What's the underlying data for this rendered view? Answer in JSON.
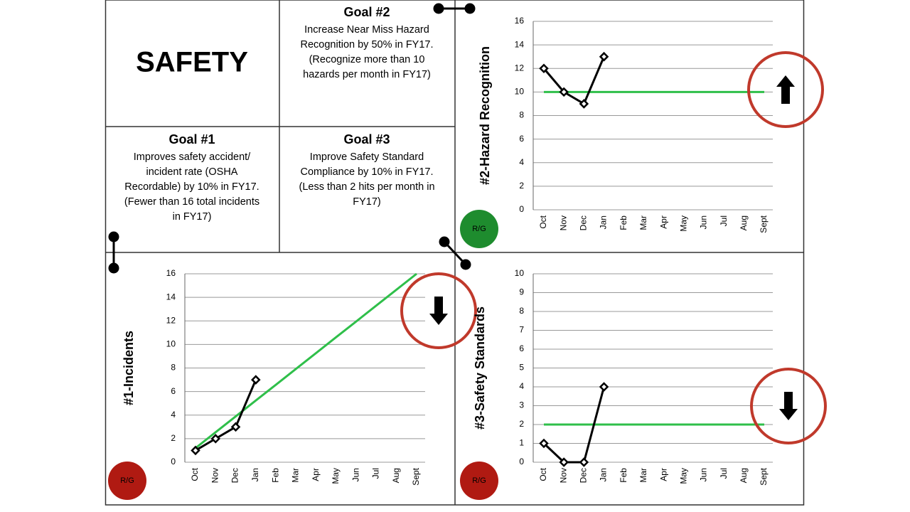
{
  "title": "SAFETY",
  "goals": [
    {
      "title": "Goal #1",
      "lines": [
        "Improves safety accident/",
        "incident rate (OSHA",
        "Recordable) by 10% in FY17.",
        "(Fewer than 16 total incidents",
        "in FY17)"
      ]
    },
    {
      "title": "Goal #2",
      "lines": [
        "Increase Near Miss Hazard",
        "Recognition by 50% in FY17.",
        "(Recognize more than 10",
        "hazards per month in FY17)"
      ]
    },
    {
      "title": "Goal #3",
      "lines": [
        "Improve Safety Standard",
        "Compliance by 10% in FY17.",
        "(Less than 2 hits per month in",
        "FY17)"
      ]
    }
  ],
  "chart_data": [
    {
      "type": "line",
      "y_label": "#2-Hazard Recognition",
      "categories": [
        "Oct",
        "Nov",
        "Dec",
        "Jan",
        "Feb",
        "Mar",
        "Apr",
        "May",
        "Jun",
        "Jul",
        "Aug",
        "Sept"
      ],
      "series": [
        {
          "color": "#000000",
          "values": [
            12,
            10,
            9,
            13,
            null,
            null,
            null,
            null,
            null,
            null,
            null,
            null
          ],
          "markers": true
        },
        {
          "color": "#2fbf4a",
          "values": [
            10,
            10,
            10,
            10,
            10,
            10,
            10,
            10,
            10,
            10,
            10,
            10
          ],
          "markers": false
        }
      ],
      "ylim": [
        0,
        16
      ],
      "yticks": [
        0,
        2,
        4,
        6,
        8,
        10,
        12,
        14,
        16
      ],
      "grid": true,
      "status": {
        "label": "R/G",
        "color": "#1e8c2e"
      },
      "trend": "up"
    },
    {
      "type": "line",
      "y_label": "#1-Incidents",
      "categories": [
        "Oct",
        "Nov",
        "Dec",
        "Jan",
        "Feb",
        "Mar",
        "Apr",
        "May",
        "Jun",
        "Jul",
        "Aug",
        "Sept"
      ],
      "series": [
        {
          "color": "#000000",
          "values": [
            1,
            2,
            3,
            7,
            null,
            null,
            null,
            null,
            null,
            null,
            null,
            null
          ],
          "markers": true
        },
        {
          "color": "#2fbf4a",
          "values": [
            1.2,
            2.55,
            3.89,
            5.24,
            6.58,
            7.93,
            9.27,
            10.62,
            11.96,
            13.31,
            14.65,
            16
          ],
          "markers": false
        }
      ],
      "ylim": [
        0,
        16
      ],
      "yticks": [
        0,
        2,
        4,
        6,
        8,
        10,
        12,
        14,
        16
      ],
      "grid": true,
      "status": {
        "label": "R/G",
        "color": "#b01a12"
      },
      "trend": "down"
    },
    {
      "type": "line",
      "y_label": "#3-Safety Standards",
      "categories": [
        "Oct",
        "Nov",
        "Dec",
        "Jan",
        "Feb",
        "Mar",
        "Apr",
        "May",
        "Jun",
        "Jul",
        "Aug",
        "Sept"
      ],
      "series": [
        {
          "color": "#000000",
          "values": [
            1,
            0,
            0,
            4,
            null,
            null,
            null,
            null,
            null,
            null,
            null,
            null
          ],
          "markers": true
        },
        {
          "color": "#2fbf4a",
          "values": [
            2,
            2,
            2,
            2,
            2,
            2,
            2,
            2,
            2,
            2,
            2,
            2
          ],
          "markers": false
        }
      ],
      "ylim": [
        0,
        10
      ],
      "yticks": [
        0,
        1,
        2,
        3,
        4,
        5,
        6,
        7,
        8,
        9,
        10
      ],
      "grid": true,
      "status": {
        "label": "R/G",
        "color": "#b01a12"
      },
      "trend": "down"
    }
  ]
}
